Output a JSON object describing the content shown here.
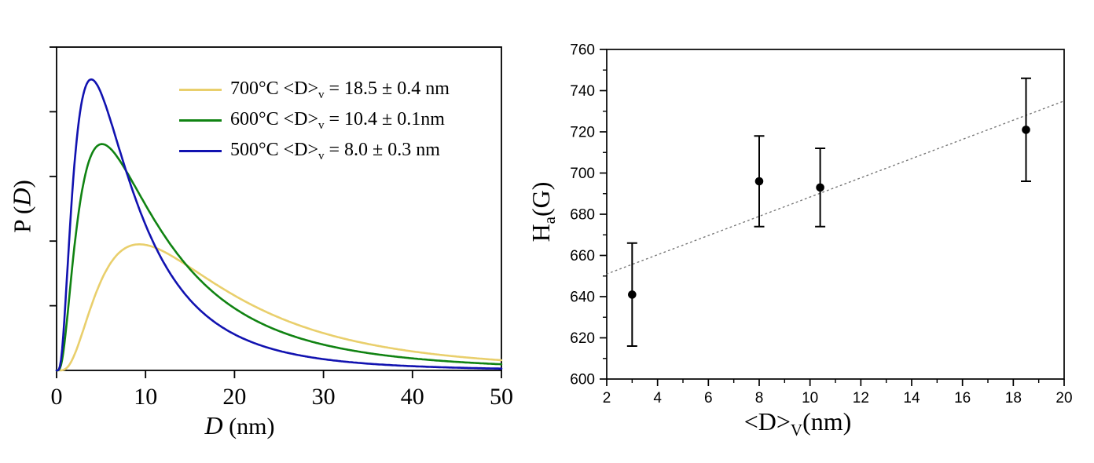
{
  "figure": {
    "background": "#ffffff"
  },
  "chart_data": [
    {
      "type": "line",
      "id": "grain-size-distribution",
      "title": "",
      "xlabel": {
        "italic": "D",
        "post": " (nm)"
      },
      "ylabel": {
        "pre": "P (",
        "italic": "D",
        "post": ")"
      },
      "xlim": [
        0,
        50
      ],
      "x_ticks": [
        0,
        10,
        20,
        30,
        40,
        50
      ],
      "ylim": [
        0,
        1
      ],
      "y_unlabeled_tick_divisions": 5,
      "grid": false,
      "legend_position": "top-right-inside",
      "frame_color": "#000000",
      "series": [
        {
          "name": "700C",
          "legend": {
            "pre": "700°C <D>",
            "sub": "v",
            "post": " = 18.5 ± 0.4 nm"
          },
          "mean_diameter_nm": 18.5,
          "mean_diameter_err_nm": 0.4,
          "color": "#E9CF6C",
          "distribution": {
            "shape": "lognormal",
            "mode_nm": 9.3,
            "sigma": 0.75,
            "peak_height_rel": 0.39
          }
        },
        {
          "name": "600C",
          "legend": {
            "pre": "600°C <D>",
            "sub": "v",
            "post": " = 10.4 ± 0.1nm"
          },
          "mean_diameter_nm": 10.4,
          "mean_diameter_err_nm": 0.1,
          "color": "#108312",
          "distribution": {
            "shape": "lognormal",
            "mode_nm": 5.1,
            "sigma": 0.85,
            "peak_height_rel": 0.7
          }
        },
        {
          "name": "500C",
          "legend": {
            "pre": "500°C <D>",
            "sub": "v",
            "post": " = 8.0 ± 0.3 nm"
          },
          "mean_diameter_nm": 8.0,
          "mean_diameter_err_nm": 0.3,
          "color": "#1112B0",
          "distribution": {
            "shape": "lognormal",
            "mode_nm": 3.9,
            "sigma": 0.8,
            "peak_height_rel": 0.9
          }
        }
      ]
    },
    {
      "type": "scatter",
      "id": "hyperfine-field-vs-size",
      "title": "",
      "xlabel": {
        "pre": "<D>",
        "sub": "V",
        "post": "(nm)"
      },
      "ylabel": {
        "pre": "H",
        "sub": "a",
        "post": "(G)"
      },
      "xlim": [
        2,
        20
      ],
      "ylim": [
        600,
        760
      ],
      "x_ticks": [
        2,
        4,
        6,
        8,
        10,
        12,
        14,
        16,
        18,
        20
      ],
      "y_ticks": [
        600,
        620,
        640,
        660,
        680,
        700,
        720,
        740,
        760
      ],
      "x_minor_step": 1,
      "y_minor_step": 10,
      "grid": false,
      "frame_color": "#000000",
      "marker": {
        "shape": "circle",
        "color": "#000000"
      },
      "points": [
        {
          "x": 3.0,
          "y": 641,
          "yerr": 25
        },
        {
          "x": 8.0,
          "y": 696,
          "yerr": 22
        },
        {
          "x": 10.4,
          "y": 693,
          "yerr": 19
        },
        {
          "x": 18.5,
          "y": 721,
          "yerr": 25
        }
      ],
      "trend_line": {
        "style": "dotted",
        "color": "#777777",
        "x1": 2,
        "y1": 651,
        "x2": 20,
        "y2": 735
      }
    }
  ]
}
